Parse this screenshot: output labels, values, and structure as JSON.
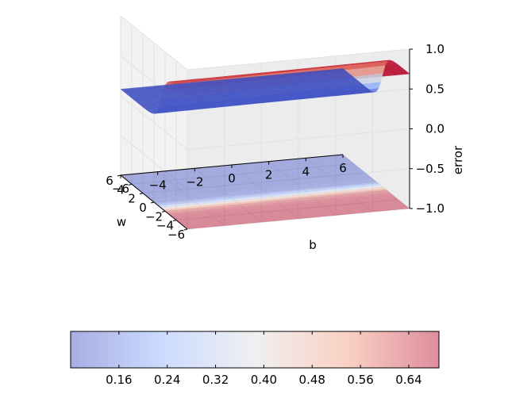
{
  "chart_data": {
    "type": "surface3d",
    "title": "",
    "axes": {
      "w": {
        "label": "w",
        "ticks": [
          -6,
          -4,
          -2,
          0,
          2,
          4,
          6
        ],
        "lim": [
          -6,
          6
        ]
      },
      "b": {
        "label": "b",
        "ticks": [
          -6,
          -4,
          -2,
          0,
          2,
          4,
          6
        ],
        "lim": [
          -6,
          6
        ]
      },
      "error": {
        "label": "error",
        "ticks": [
          -1.0,
          -0.5,
          0.0,
          0.5,
          1.0
        ],
        "tick_labels": [
          "−1.0",
          "−0.5",
          "0.0",
          "0.5",
          "1.0"
        ],
        "lim": [
          -1,
          1
        ]
      }
    },
    "surface": {
      "upper_level": 0.69,
      "lower_level": 0.08,
      "description_colormap": "coolwarm",
      "alpha": 0.5
    },
    "contour_projection_z": -1.0,
    "grid": true,
    "colorbar": {
      "orientation": "horizontal",
      "ticks": [
        0.16,
        0.24,
        0.32,
        0.4,
        0.48,
        0.56,
        0.64
      ],
      "tick_labels": [
        "0.16",
        "0.24",
        "0.32",
        "0.40",
        "0.48",
        "0.56",
        "0.64"
      ],
      "range": [
        0.08,
        0.69
      ]
    },
    "colors": {
      "cold": "#3b4cc0",
      "neutral": "#dddddd",
      "warm": "#b40426",
      "pane": "#f2f2f2",
      "grid": "#e2e2e2"
    }
  }
}
